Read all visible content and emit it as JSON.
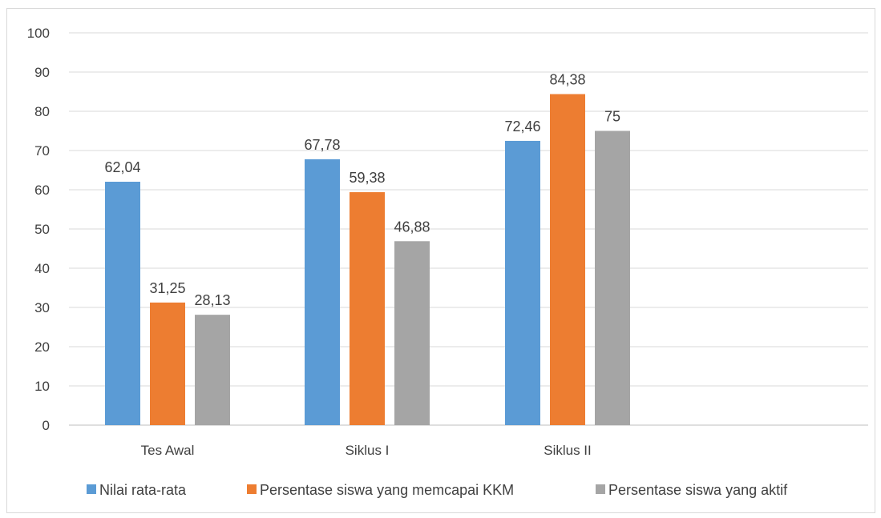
{
  "chart_data": {
    "type": "bar",
    "title": "",
    "xlabel": "",
    "ylabel": "",
    "ylim": [
      0,
      100
    ],
    "y_ticks": [
      0,
      10,
      20,
      30,
      40,
      50,
      60,
      70,
      80,
      90,
      100
    ],
    "grid": true,
    "legend_position": "bottom",
    "categories": [
      "Tes Awal",
      "Siklus I",
      "Siklus II"
    ],
    "series": [
      {
        "name": "Nilai rata-rata",
        "values": [
          62.04,
          67.78,
          72.46
        ],
        "labels": [
          "62,04",
          "67,78",
          "72,46"
        ],
        "color": "#5b9bd5"
      },
      {
        "name": "Persentase siswa yang memcapai KKM",
        "values": [
          31.25,
          59.38,
          84.38
        ],
        "labels": [
          "31,25",
          "59,38",
          "84,38"
        ],
        "color": "#ed7d31"
      },
      {
        "name": "Persentase siswa yang aktif",
        "values": [
          28.13,
          46.88,
          75
        ],
        "labels": [
          "28,13",
          "46,88",
          "75"
        ],
        "color": "#a5a5a5"
      }
    ]
  }
}
